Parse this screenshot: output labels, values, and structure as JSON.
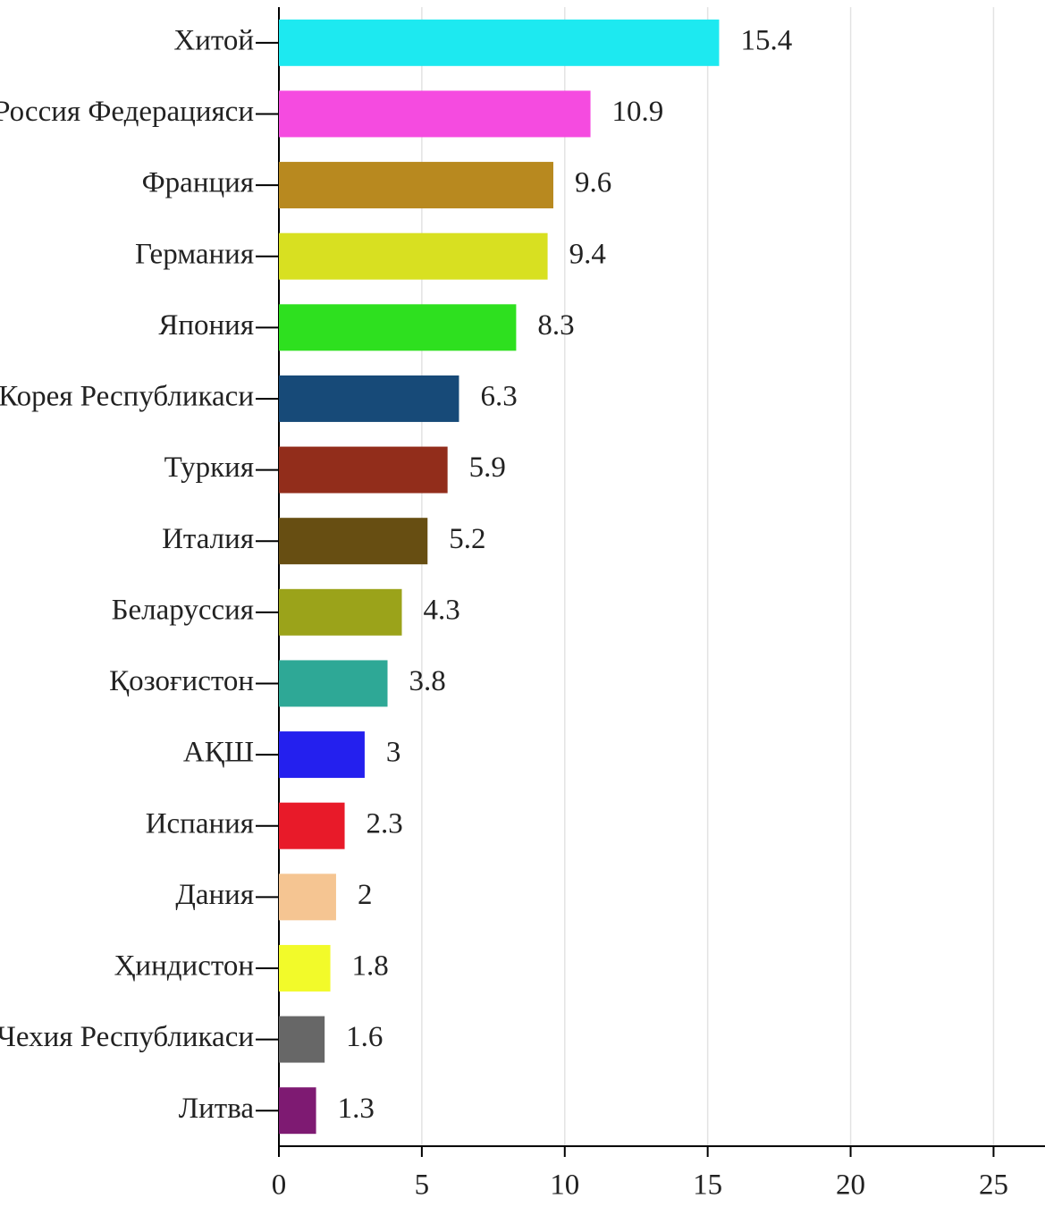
{
  "chart_data": {
    "type": "bar",
    "orientation": "horizontal",
    "categories": [
      "Хитой",
      "Россия Федерацияси",
      "Франция",
      "Германия",
      "Япония",
      "Корея Республикаси",
      "Туркия",
      "Италия",
      "Беларуссия",
      "Қозоғистон",
      "АҚШ",
      "Испания",
      "Дания",
      "Ҳиндистон",
      "Чехия Республикаси",
      "Литва"
    ],
    "values": [
      15.4,
      10.9,
      9.6,
      9.4,
      8.3,
      6.3,
      5.9,
      5.2,
      4.3,
      3.8,
      3,
      2.3,
      2,
      1.8,
      1.6,
      1.3
    ],
    "colors": [
      "#1de9f0",
      "#f54be0",
      "#b8891f",
      "#d8e021",
      "#2ee01f",
      "#174a78",
      "#922d1b",
      "#674e12",
      "#9ba31a",
      "#2ea896",
      "#2420ee",
      "#e81a29",
      "#f5c592",
      "#f2fa2a",
      "#676767",
      "#7e1a72"
    ],
    "xlim": [
      0,
      26.8
    ],
    "xticks": [
      0,
      5,
      10,
      15,
      20,
      25
    ],
    "grid": true
  }
}
